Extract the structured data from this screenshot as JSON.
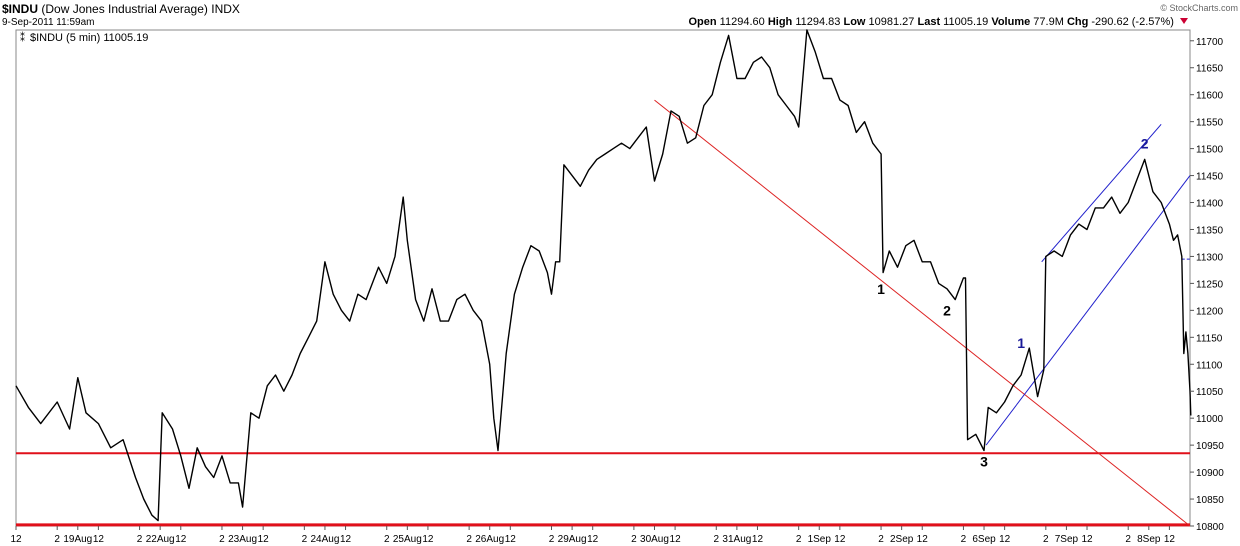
{
  "header": {
    "symbol": "$INDU",
    "name": "(Dow Jones Industrial Average)",
    "exchange": "INDX",
    "timestamp": "9-Sep-2011 11:59am",
    "credit": "© StockCharts.com",
    "open_label": "Open",
    "open": "11294.60",
    "high_label": "High",
    "high": "11294.83",
    "low_label": "Low",
    "low": "10981.27",
    "last_label": "Last",
    "last": "11005.19",
    "volume_label": "Volume",
    "volume": "77.9M",
    "chg_label": "Chg",
    "chg": "-290.62 (-2.57%)"
  },
  "legend": {
    "label": "$INDU (5 min) 11005.19"
  },
  "colors": {
    "price": "#000000",
    "support": "#e0101a",
    "downtrend": "#dd2222",
    "channel": "#2020cc",
    "wave_blue": "#1a1a99"
  },
  "chart_data": {
    "type": "line",
    "title": "$INDU (Dow Jones Industrial Average) 5 min",
    "ylim": [
      10800,
      11720
    ],
    "yticks": [
      10800,
      10850,
      10900,
      10950,
      11000,
      11050,
      11100,
      11150,
      11200,
      11250,
      11300,
      11350,
      11400,
      11450,
      11500,
      11550,
      11600,
      11650,
      11700
    ],
    "xlim": [
      0,
      28.5
    ],
    "xticks": [
      {
        "x": 0,
        "label": "12"
      },
      {
        "x": 1,
        "label": "2"
      },
      {
        "x": 1.5,
        "label": "19Aug"
      },
      {
        "x": 2,
        "label": "12"
      },
      {
        "x": 3,
        "label": "2"
      },
      {
        "x": 3.5,
        "label": "22Aug"
      },
      {
        "x": 4,
        "label": "12"
      },
      {
        "x": 5,
        "label": "2"
      },
      {
        "x": 5.5,
        "label": "23Aug"
      },
      {
        "x": 6,
        "label": "12"
      },
      {
        "x": 7,
        "label": "2"
      },
      {
        "x": 7.5,
        "label": "24Aug"
      },
      {
        "x": 8,
        "label": "12"
      },
      {
        "x": 9,
        "label": "2"
      },
      {
        "x": 9.5,
        "label": "25Aug"
      },
      {
        "x": 10,
        "label": "12"
      },
      {
        "x": 11,
        "label": "2"
      },
      {
        "x": 11.5,
        "label": "26Aug"
      },
      {
        "x": 12,
        "label": "12"
      },
      {
        "x": 13,
        "label": "2"
      },
      {
        "x": 13.5,
        "label": "29Aug"
      },
      {
        "x": 14,
        "label": "12"
      },
      {
        "x": 15,
        "label": "2"
      },
      {
        "x": 15.5,
        "label": "30Aug"
      },
      {
        "x": 16,
        "label": "12"
      },
      {
        "x": 17,
        "label": "2"
      },
      {
        "x": 17.5,
        "label": "31Aug"
      },
      {
        "x": 18,
        "label": "12"
      },
      {
        "x": 19,
        "label": "2"
      },
      {
        "x": 19.5,
        "label": "1Sep"
      },
      {
        "x": 20,
        "label": "12"
      },
      {
        "x": 21,
        "label": "2"
      },
      {
        "x": 21.5,
        "label": "2Sep"
      },
      {
        "x": 22,
        "label": "12"
      },
      {
        "x": 23,
        "label": "2"
      },
      {
        "x": 23.5,
        "label": "6Sep"
      },
      {
        "x": 24,
        "label": "12"
      },
      {
        "x": 25,
        "label": "2"
      },
      {
        "x": 25.5,
        "label": "7Sep"
      },
      {
        "x": 26,
        "label": "12"
      },
      {
        "x": 27,
        "label": "2"
      },
      {
        "x": 27.5,
        "label": "8Sep"
      },
      {
        "x": 28,
        "label": "12"
      }
    ],
    "series": [
      {
        "name": "$INDU",
        "points": [
          [
            0.0,
            11060
          ],
          [
            0.3,
            11020
          ],
          [
            0.6,
            10990
          ],
          [
            1.0,
            11030
          ],
          [
            1.3,
            10980
          ],
          [
            1.5,
            11075
          ],
          [
            1.7,
            11010
          ],
          [
            2.0,
            10990
          ],
          [
            2.3,
            10945
          ],
          [
            2.6,
            10960
          ],
          [
            2.9,
            10890
          ],
          [
            3.1,
            10850
          ],
          [
            3.3,
            10820
          ],
          [
            3.45,
            10810
          ],
          [
            3.55,
            11010
          ],
          [
            3.8,
            10980
          ],
          [
            4.0,
            10930
          ],
          [
            4.2,
            10870
          ],
          [
            4.4,
            10945
          ],
          [
            4.6,
            10910
          ],
          [
            4.8,
            10890
          ],
          [
            5.0,
            10930
          ],
          [
            5.2,
            10880
          ],
          [
            5.4,
            10880
          ],
          [
            5.5,
            10835
          ],
          [
            5.7,
            11010
          ],
          [
            5.9,
            11000
          ],
          [
            6.1,
            11060
          ],
          [
            6.3,
            11080
          ],
          [
            6.5,
            11050
          ],
          [
            6.7,
            11080
          ],
          [
            6.9,
            11120
          ],
          [
            7.1,
            11150
          ],
          [
            7.3,
            11180
          ],
          [
            7.5,
            11290
          ],
          [
            7.7,
            11230
          ],
          [
            7.9,
            11200
          ],
          [
            8.1,
            11180
          ],
          [
            8.3,
            11230
          ],
          [
            8.5,
            11220
          ],
          [
            8.8,
            11280
          ],
          [
            9.0,
            11250
          ],
          [
            9.2,
            11300
          ],
          [
            9.4,
            11410
          ],
          [
            9.5,
            11330
          ],
          [
            9.7,
            11220
          ],
          [
            9.9,
            11180
          ],
          [
            10.1,
            11240
          ],
          [
            10.3,
            11180
          ],
          [
            10.5,
            11180
          ],
          [
            10.7,
            11220
          ],
          [
            10.9,
            11230
          ],
          [
            11.1,
            11200
          ],
          [
            11.3,
            11180
          ],
          [
            11.5,
            11100
          ],
          [
            11.6,
            11000
          ],
          [
            11.7,
            10940
          ],
          [
            11.9,
            11120
          ],
          [
            12.1,
            11230
          ],
          [
            12.3,
            11280
          ],
          [
            12.5,
            11320
          ],
          [
            12.7,
            11310
          ],
          [
            12.9,
            11270
          ],
          [
            13.0,
            11230
          ],
          [
            13.1,
            11290
          ],
          [
            13.2,
            11290
          ],
          [
            13.3,
            11470
          ],
          [
            13.5,
            11450
          ],
          [
            13.7,
            11430
          ],
          [
            13.9,
            11460
          ],
          [
            14.1,
            11480
          ],
          [
            14.3,
            11490
          ],
          [
            14.5,
            11500
          ],
          [
            14.7,
            11510
          ],
          [
            14.9,
            11500
          ],
          [
            15.1,
            11520
          ],
          [
            15.3,
            11540
          ],
          [
            15.5,
            11440
          ],
          [
            15.7,
            11490
          ],
          [
            15.9,
            11570
          ],
          [
            16.1,
            11560
          ],
          [
            16.3,
            11510
          ],
          [
            16.5,
            11520
          ],
          [
            16.7,
            11580
          ],
          [
            16.9,
            11600
          ],
          [
            17.1,
            11660
          ],
          [
            17.3,
            11710
          ],
          [
            17.5,
            11630
          ],
          [
            17.7,
            11630
          ],
          [
            17.9,
            11660
          ],
          [
            18.1,
            11670
          ],
          [
            18.3,
            11650
          ],
          [
            18.5,
            11600
          ],
          [
            18.7,
            11580
          ],
          [
            18.9,
            11560
          ],
          [
            19.0,
            11540
          ],
          [
            19.2,
            11720
          ],
          [
            19.4,
            11680
          ],
          [
            19.6,
            11630
          ],
          [
            19.8,
            11630
          ],
          [
            20.0,
            11590
          ],
          [
            20.2,
            11580
          ],
          [
            20.4,
            11530
          ],
          [
            20.6,
            11550
          ],
          [
            20.8,
            11510
          ],
          [
            21.0,
            11490
          ],
          [
            21.05,
            11270
          ],
          [
            21.2,
            11310
          ],
          [
            21.4,
            11280
          ],
          [
            21.6,
            11320
          ],
          [
            21.8,
            11330
          ],
          [
            22.0,
            11290
          ],
          [
            22.2,
            11290
          ],
          [
            22.4,
            11250
          ],
          [
            22.6,
            11240
          ],
          [
            22.8,
            11220
          ],
          [
            23.0,
            11260
          ],
          [
            23.05,
            11260
          ],
          [
            23.1,
            10960
          ],
          [
            23.3,
            10970
          ],
          [
            23.5,
            10940
          ],
          [
            23.6,
            11020
          ],
          [
            23.8,
            11010
          ],
          [
            24.0,
            11030
          ],
          [
            24.2,
            11060
          ],
          [
            24.4,
            11080
          ],
          [
            24.6,
            11130
          ],
          [
            24.8,
            11040
          ],
          [
            24.95,
            11090
          ],
          [
            25.0,
            11300
          ],
          [
            25.2,
            11310
          ],
          [
            25.4,
            11300
          ],
          [
            25.6,
            11340
          ],
          [
            25.8,
            11360
          ],
          [
            26.0,
            11350
          ],
          [
            26.2,
            11390
          ],
          [
            26.4,
            11390
          ],
          [
            26.6,
            11410
          ],
          [
            26.8,
            11380
          ],
          [
            27.0,
            11400
          ],
          [
            27.2,
            11440
          ],
          [
            27.4,
            11480
          ],
          [
            27.6,
            11420
          ],
          [
            27.8,
            11400
          ],
          [
            28.0,
            11360
          ],
          [
            28.1,
            11330
          ],
          [
            28.2,
            11340
          ],
          [
            28.3,
            11300
          ],
          [
            28.35,
            11120
          ],
          [
            28.4,
            11160
          ],
          [
            28.45,
            11120
          ],
          [
            28.5,
            11050
          ],
          [
            28.52,
            11005
          ]
        ]
      }
    ],
    "lines": [
      {
        "name": "support-10935",
        "from": [
          0,
          10935
        ],
        "to": [
          28.5,
          10935
        ]
      },
      {
        "name": "support-10800",
        "from": [
          0,
          10802
        ],
        "to": [
          28.5,
          10802
        ]
      },
      {
        "name": "downtrend",
        "from": [
          15.5,
          11590
        ],
        "to": [
          28.5,
          10800
        ]
      },
      {
        "name": "channel-lower",
        "from": [
          23.55,
          10950
        ],
        "to": [
          28.5,
          11450
        ]
      },
      {
        "name": "channel-upper",
        "from": [
          24.9,
          11290
        ],
        "to": [
          27.8,
          11545
        ]
      },
      {
        "name": "close-ref",
        "from": [
          28.3,
          11295
        ],
        "to": [
          28.5,
          11295
        ]
      }
    ],
    "annotations": [
      {
        "text": "1",
        "x": 21.0,
        "y": 11230,
        "color": "black"
      },
      {
        "text": "2",
        "x": 22.6,
        "y": 11190,
        "color": "black"
      },
      {
        "text": "3",
        "x": 23.5,
        "y": 10910,
        "color": "black"
      },
      {
        "text": "1",
        "x": 24.4,
        "y": 11130,
        "color": "blue"
      },
      {
        "text": "2",
        "x": 27.4,
        "y": 11500,
        "color": "blue"
      }
    ]
  }
}
